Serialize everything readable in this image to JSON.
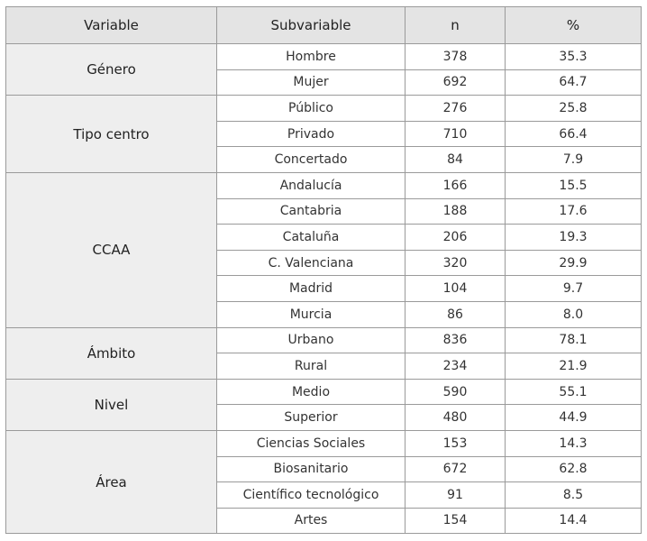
{
  "table": {
    "header": [
      "Variable",
      "Subvariable",
      "n",
      "%"
    ],
    "groups": [
      {
        "variable": "Género",
        "rows": [
          [
            "Hombre",
            "378",
            "35.3"
          ],
          [
            "Mujer",
            "692",
            "64.7"
          ]
        ]
      },
      {
        "variable": "Tipo centro",
        "rows": [
          [
            "Público",
            "276",
            "25.8"
          ],
          [
            "Privado",
            "710",
            "66.4"
          ],
          [
            "Concertado",
            "84",
            "7.9"
          ]
        ]
      },
      {
        "variable": "CCAA",
        "rows": [
          [
            "Andalucía",
            "166",
            "15.5"
          ],
          [
            "Cantabria",
            "188",
            "17.6"
          ],
          [
            "Cataluña",
            "206",
            "19.3"
          ],
          [
            "C. Valenciana",
            "320",
            "29.9"
          ],
          [
            "Madrid",
            "104",
            "9.7"
          ],
          [
            "Murcia",
            "86",
            "8.0"
          ]
        ]
      },
      {
        "variable": "Ámbito",
        "rows": [
          [
            "Urbano",
            "836",
            "78.1"
          ],
          [
            "Rural",
            "234",
            "21.9"
          ]
        ]
      },
      {
        "variable": "Nivel",
        "rows": [
          [
            "Medio",
            "590",
            "55.1"
          ],
          [
            "Superior",
            "480",
            "44.9"
          ]
        ]
      },
      {
        "variable": "Área",
        "rows": [
          [
            "Ciencias Sociales",
            "153",
            "14.3"
          ],
          [
            "Biosanitario",
            "672",
            "62.8"
          ],
          [
            "Científico tecnológico",
            "91",
            "8.5"
          ],
          [
            "Artes",
            "154",
            "14.4"
          ]
        ]
      }
    ]
  }
}
